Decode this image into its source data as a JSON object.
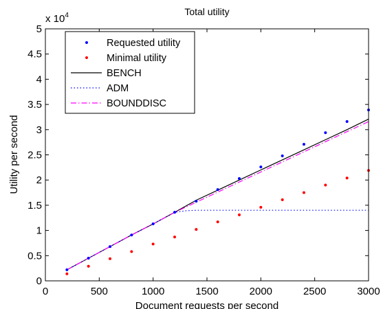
{
  "chart_data": {
    "type": "line",
    "title": "Total utility",
    "xlabel": "Document requests per second",
    "ylabel": "Utility per second",
    "y_multiplier_base": "x 10",
    "y_multiplier_exp": "4",
    "xlim": [
      0,
      3000
    ],
    "ylim": [
      0,
      5
    ],
    "x_ticks": [
      0,
      500,
      1000,
      1500,
      2000,
      2500,
      3000
    ],
    "x_tick_labels": [
      "0",
      "500",
      "1000",
      "1500",
      "2000",
      "2500",
      "3000"
    ],
    "y_ticks": [
      0,
      0.5,
      1,
      1.5,
      2,
      2.5,
      3,
      3.5,
      4,
      4.5,
      5
    ],
    "y_tick_labels": [
      "0",
      "0.5",
      "1",
      "1.5",
      "2",
      "2.5",
      "3",
      "3.5",
      "4",
      "4.5",
      "5"
    ],
    "grid": false,
    "legend_position": "top-left",
    "series": [
      {
        "name": "Requested utility",
        "style": "dots",
        "color": "#0000ff",
        "x": [
          200,
          400,
          600,
          800,
          1000,
          1200,
          1400,
          1600,
          1800,
          2000,
          2200,
          2400,
          2600,
          2800,
          3000
        ],
        "y": [
          0.22,
          0.45,
          0.68,
          0.91,
          1.13,
          1.36,
          1.58,
          1.81,
          2.03,
          2.26,
          2.48,
          2.71,
          2.94,
          3.16,
          3.39
        ]
      },
      {
        "name": "Minimal utility",
        "style": "dots",
        "color": "#ff0000",
        "x": [
          200,
          400,
          600,
          800,
          1000,
          1200,
          1400,
          1600,
          1800,
          2000,
          2200,
          2400,
          2600,
          2800,
          3000
        ],
        "y": [
          0.14,
          0.29,
          0.44,
          0.58,
          0.73,
          0.87,
          1.02,
          1.17,
          1.31,
          1.46,
          1.61,
          1.75,
          1.9,
          2.04,
          2.19
        ]
      },
      {
        "name": "BENCH",
        "style": "solid",
        "color": "#000000",
        "x": [
          200,
          400,
          600,
          800,
          1000,
          1200,
          1400,
          1600,
          1800,
          2000,
          2200,
          2400,
          2600,
          2800,
          3000
        ],
        "y": [
          0.22,
          0.45,
          0.68,
          0.91,
          1.13,
          1.36,
          1.6,
          1.8,
          2.0,
          2.2,
          2.4,
          2.6,
          2.8,
          3.0,
          3.21
        ]
      },
      {
        "name": "ADM",
        "style": "dotted",
        "color": "#0000ff",
        "x": [
          200,
          400,
          600,
          800,
          1000,
          1200,
          1300,
          1400,
          1600,
          1800,
          2000,
          2200,
          2400,
          2600,
          2800,
          3000
        ],
        "y": [
          0.22,
          0.45,
          0.68,
          0.91,
          1.13,
          1.36,
          1.39,
          1.4,
          1.4,
          1.4,
          1.4,
          1.4,
          1.4,
          1.4,
          1.4,
          1.4
        ]
      },
      {
        "name": "BOUNDDISC",
        "style": "dashdot",
        "color": "#ff00ff",
        "x": [
          200,
          400,
          600,
          800,
          1000,
          1200,
          1400,
          1600,
          1800,
          2000,
          2200,
          2400,
          2600,
          2800,
          3000
        ],
        "y": [
          0.22,
          0.45,
          0.68,
          0.91,
          1.13,
          1.36,
          1.56,
          1.76,
          1.96,
          2.16,
          2.36,
          2.56,
          2.76,
          2.96,
          3.16
        ]
      }
    ]
  }
}
